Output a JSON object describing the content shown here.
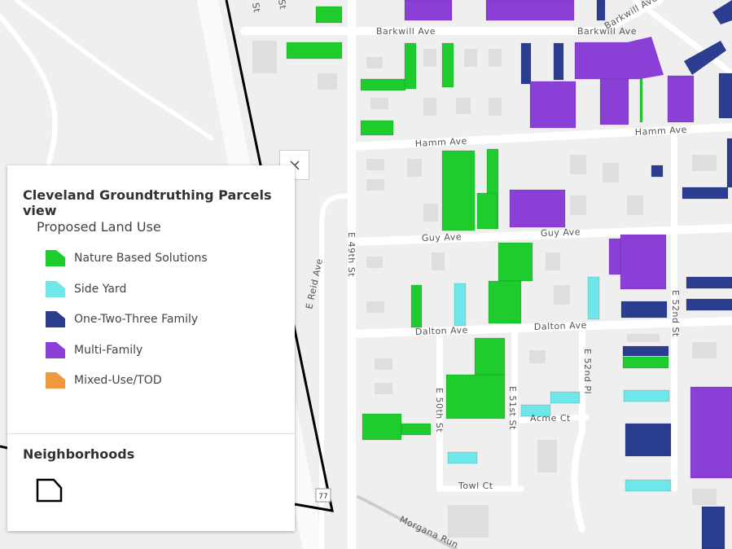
{
  "legend": {
    "title": "Cleveland Groundtruthing Parcels view",
    "layer_title": "Proposed Land Use",
    "items": [
      {
        "label": "Nature Based Solutions",
        "color": "#1fcc2e"
      },
      {
        "label": "Side Yard",
        "color": "#6fe6ea"
      },
      {
        "label": "One-Two-Three Family",
        "color": "#2b3d8f"
      },
      {
        "label": "Multi-Family",
        "color": "#8a3fd6"
      },
      {
        "label": "Mixed-Use/TOD",
        "color": "#f0983c"
      }
    ],
    "neighborhoods_title": "Neighborhoods"
  },
  "map": {
    "street_labels": [
      "Barkwill Ave",
      "Barkwill Ave",
      "Barkwill Ave",
      "Hamm Ave",
      "Hamm Ave",
      "Guy Ave",
      "Guy Ave",
      "Dalton Ave",
      "Dalton Ave",
      "E 49th St",
      "E Reid Ave",
      "E 50th St",
      "E 51st St",
      "E 52nd Pl",
      "E 52nd St",
      "Acme Ct",
      "Towl Ct",
      "Morgana Run",
      "St",
      "St"
    ],
    "route_shield": "77"
  }
}
